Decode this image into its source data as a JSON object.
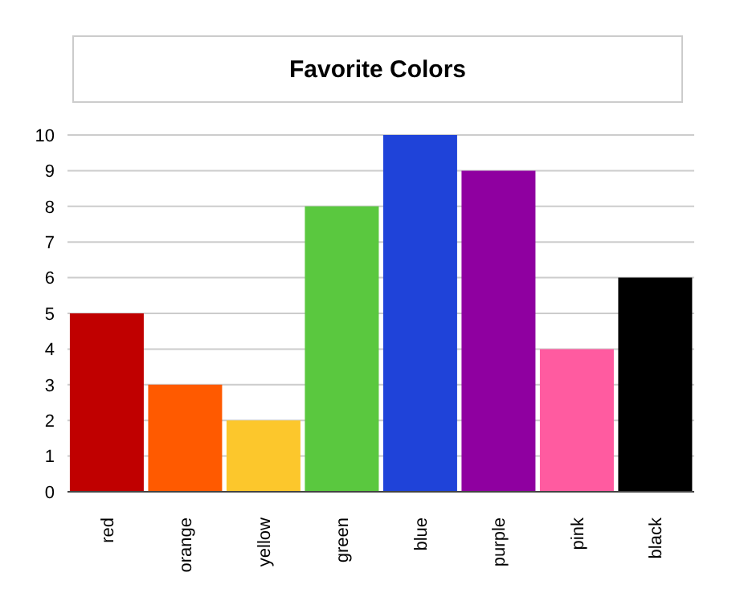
{
  "chart_data": {
    "type": "bar",
    "title": "Favorite Colors",
    "categories": [
      "red",
      "orange",
      "yellow",
      "green",
      "blue",
      "purple",
      "pink",
      "black"
    ],
    "values": [
      5,
      3,
      2,
      8,
      10,
      9,
      4,
      6
    ],
    "colors": [
      "#c00000",
      "#ff5a00",
      "#fcc72c",
      "#5ac83f",
      "#1f43d9",
      "#8f00a0",
      "#ff5ba0",
      "#000000"
    ],
    "ylim": [
      0,
      10
    ],
    "yticks": [
      0,
      1,
      2,
      3,
      4,
      5,
      6,
      7,
      8,
      9,
      10
    ],
    "grid": "y"
  }
}
